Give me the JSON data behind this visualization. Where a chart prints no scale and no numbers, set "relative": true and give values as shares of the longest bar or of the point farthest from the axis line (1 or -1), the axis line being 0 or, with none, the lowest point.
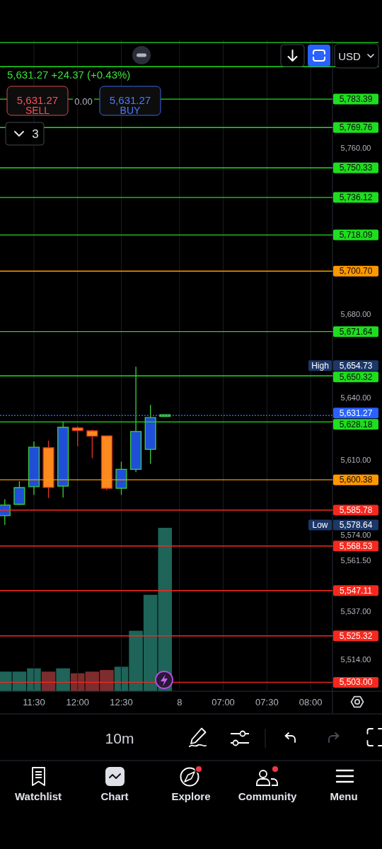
{
  "chart_data": [
    {
      "type": "candlestick",
      "subtitle": "5,631.27 +24.37 (+0.43%)",
      "categories": [
        null,
        null,
        "11:30",
        null,
        null,
        "12:00",
        null,
        null,
        "12:30",
        null,
        null,
        null,
        "8",
        null,
        null,
        "07:00",
        null,
        null,
        "07:30",
        null,
        null,
        "08:00",
        null
      ],
      "ohlc": [
        [
          5583.1,
          5591.0,
          5578.64,
          5588.2
        ],
        [
          5588.6,
          5599.7,
          5588.3,
          5596.6
        ],
        [
          5597.1,
          5618.8,
          5593.1,
          5616.0
        ],
        [
          5615.8,
          5619.2,
          5591.6,
          5596.7
        ],
        [
          5597.3,
          5628.4,
          5591.8,
          5625.6
        ],
        [
          5625.3,
          5626.1,
          5616.5,
          5624.1
        ],
        [
          5623.9,
          5624.4,
          5610.8,
          5621.4
        ],
        [
          5621.5,
          5621.7,
          5595.4,
          5596.3
        ],
        [
          5596.3,
          5609.1,
          5593.1,
          5605.4
        ],
        [
          5605.4,
          5654.73,
          5604.2,
          5623.6
        ],
        [
          5615.0,
          5636.4,
          5608.1,
          5630.3
        ],
        [
          5631.27,
          5631.27,
          5631.27,
          5631.27
        ],
        null,
        null,
        null,
        null,
        null,
        null,
        null,
        null,
        null,
        null,
        null
      ],
      "colors": [
        "#1f4fd6",
        "#1f4fd6",
        "#1f4fd6",
        "#fc8a1e",
        "#1f4fd6",
        "#fc8a1e",
        "#fc8a1e",
        "#fc8a1e",
        "#1f4fd6",
        "#1f4fd6",
        "#1f4fd6",
        "#3ccf3c",
        null,
        null,
        null,
        null,
        null,
        null,
        null,
        null,
        null,
        null,
        null
      ],
      "ylim": [
        5499.4,
        5812.0
      ],
      "yticks": [
        {
          "value": 5760,
          "label": "5,760.00"
        },
        {
          "value": 5680,
          "label": "5,680.00"
        },
        {
          "value": 5640,
          "label": "5,640.00"
        },
        {
          "value": 5610,
          "label": "5,610.00"
        },
        {
          "value": 5574,
          "label": "5,574.00"
        },
        {
          "value": 5561.5,
          "label": "5,561.50"
        },
        {
          "value": 5537,
          "label": "5,537.00"
        },
        {
          "value": 5514,
          "label": "5,514.00"
        }
      ],
      "grid": "x",
      "ref_lines": [
        {
          "axis": "y",
          "value": 5810.6,
          "color": "#1fdd1f"
        },
        {
          "axis": "y",
          "value": 5799.0,
          "color": "#1fdd1f"
        },
        {
          "axis": "y",
          "value": 5783.39,
          "label": "5,783.39",
          "color": "#1fdd1f"
        },
        {
          "axis": "y",
          "value": 5769.76,
          "label": "5,769.76",
          "color": "#1fdd1f"
        },
        {
          "axis": "y",
          "value": 5750.33,
          "label": "5,750.33",
          "color": "#1fdd1f"
        },
        {
          "axis": "y",
          "value": 5736.12,
          "label": "5,736.12",
          "color": "#1fdd1f"
        },
        {
          "axis": "y",
          "value": 5718.09,
          "label": "5,718.09",
          "color": "#1fdd1f"
        },
        {
          "axis": "y",
          "value": 5700.7,
          "label": "5,700.70",
          "color": "#ff9800"
        },
        {
          "axis": "y",
          "value": 5671.64,
          "label": "5,671.64",
          "color": "#1fdd1f"
        },
        {
          "axis": "y",
          "value": 5650.32,
          "label": "5,650.32",
          "color": "#1fdd1f"
        },
        {
          "axis": "y",
          "value": 5631.27,
          "label": "5,631.27",
          "color": "#2962ff",
          "line_style": "dotted"
        },
        {
          "axis": "y",
          "value": 5628.18,
          "label": "5,628.18",
          "color": "#1fdd1f"
        },
        {
          "axis": "y",
          "value": 5600.38,
          "label": "5,600.38",
          "color": "#ff9800"
        },
        {
          "axis": "y",
          "value": 5585.78,
          "label": "5,585.78",
          "color": "#f5281e"
        },
        {
          "axis": "y",
          "value": 5568.53,
          "label": "5,568.53",
          "color": "#f5281e"
        },
        {
          "axis": "y",
          "value": 5547.11,
          "label": "5,547.11",
          "color": "#f5281e"
        },
        {
          "axis": "y",
          "value": 5525.32,
          "label": "5,525.32",
          "color": "#f5281e"
        },
        {
          "axis": "y",
          "value": 5503.0,
          "label": "5,503.00",
          "color": "#f5281e"
        }
      ],
      "annotations": [
        {
          "text": "High",
          "y": 5654.73
        },
        {
          "text": "Low",
          "y": 5578.64
        },
        "5,654.73",
        "5,578.64",
        "5,631.27",
        "SELL",
        "0.00",
        "5,631.27",
        "BUY",
        "3",
        "USD",
        "10m",
        "Watchlist",
        "Chart",
        "Explore",
        "Community",
        "Menu"
      ]
    },
    {
      "type": "bar",
      "relative": true,
      "categories": [
        null,
        null,
        null,
        null,
        null,
        null,
        null,
        null,
        null,
        null,
        null,
        null,
        null,
        null,
        null,
        null,
        null,
        null,
        null,
        null,
        null,
        null,
        null
      ],
      "values": [
        0.12,
        0.12,
        0.14,
        0.12,
        0.14,
        0.11,
        0.12,
        0.13,
        0.15,
        0.37,
        0.59,
        1,
        null,
        null,
        null,
        null,
        null,
        null,
        null,
        null,
        null,
        null,
        null
      ],
      "colors": [
        "#1e6458",
        "#1e6458",
        "#1e6458",
        "#7d2d2d",
        "#1e6458",
        "#7d2d2d",
        "#7d2d2d",
        "#7d2d2d",
        "#1e6458",
        "#1e6458",
        "#1e6458",
        "#1e6458",
        null,
        null,
        null,
        null,
        null,
        null,
        null,
        null,
        null,
        null,
        null
      ]
    }
  ]
}
